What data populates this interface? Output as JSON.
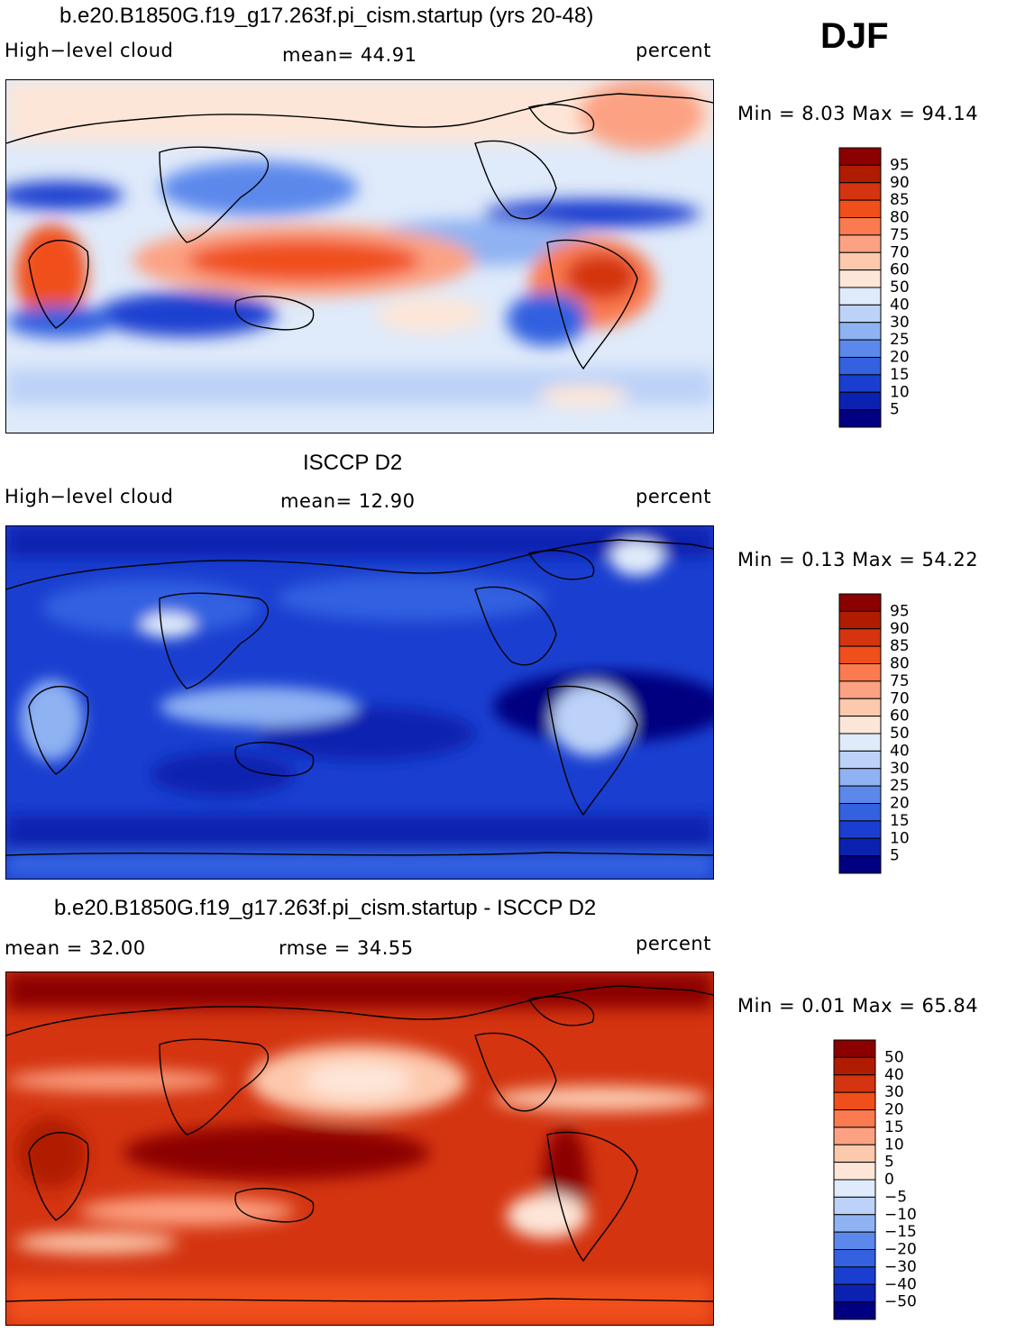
{
  "season": "DJF",
  "panels": [
    {
      "id": "model",
      "title": "b.e20.B1850G.f19_g17.263f.pi_cism.startup (yrs 20-48)",
      "left_label": "High−level cloud",
      "mid_label": "mean=   44.91",
      "right_label": "percent",
      "minmax": "Min =    8.03 Max =   94.14",
      "colorbar_ticks": [
        "95",
        "90",
        "85",
        "80",
        "75",
        "70",
        "60",
        "50",
        "40",
        "30",
        "25",
        "20",
        "15",
        "10",
        "5"
      ],
      "colorbar_colors": [
        "#8b0000",
        "#b01c00",
        "#d43410",
        "#f04f1c",
        "#fb7a4f",
        "#fca283",
        "#fdc9ad",
        "#fde6d8",
        "#dfeafa",
        "#bcd2f8",
        "#8fb2f3",
        "#5c88ec",
        "#3361e0",
        "#1a3fd0",
        "#0b22b0",
        "#000080"
      ],
      "min": 8.03,
      "max": 94.14,
      "mean": 44.91
    },
    {
      "id": "obs",
      "title": "ISCCP D2",
      "left_label": "High−level cloud",
      "mid_label": "mean=   12.90",
      "right_label": "percent",
      "minmax": "Min =    0.13 Max =   54.22",
      "colorbar_ticks": [
        "95",
        "90",
        "85",
        "80",
        "75",
        "70",
        "60",
        "50",
        "40",
        "30",
        "25",
        "20",
        "15",
        "10",
        "5"
      ],
      "colorbar_colors": [
        "#8b0000",
        "#b01c00",
        "#d43410",
        "#f04f1c",
        "#fb7a4f",
        "#fca283",
        "#fdc9ad",
        "#fde6d8",
        "#dfeafa",
        "#bcd2f8",
        "#8fb2f3",
        "#5c88ec",
        "#3361e0",
        "#1a3fd0",
        "#0b22b0",
        "#000080"
      ],
      "min": 0.13,
      "max": 54.22,
      "mean": 12.9
    },
    {
      "id": "diff",
      "title": "b.e20.B1850G.f19_g17.263f.pi_cism.startup - ISCCP D2",
      "left_label": "mean =    32.00",
      "mid_label": "rmse =    34.55",
      "right_label": "percent",
      "minmax": "Min =    0.01 Max =   65.84",
      "colorbar_ticks": [
        "50",
        "40",
        "30",
        "20",
        "15",
        "10",
        "5",
        "0",
        "−5",
        "−10",
        "−15",
        "−20",
        "−30",
        "−40",
        "−50"
      ],
      "colorbar_colors": [
        "#8b0000",
        "#b01c00",
        "#d43410",
        "#f04f1c",
        "#fb7a4f",
        "#fca283",
        "#fdc9ad",
        "#fde6d8",
        "#dfeafa",
        "#bcd2f8",
        "#8fb2f3",
        "#5c88ec",
        "#3361e0",
        "#1a3fd0",
        "#0b22b0",
        "#000080"
      ],
      "min": 0.01,
      "max": 65.84,
      "mean": 32.0,
      "rmse": 34.55
    }
  ],
  "chart_data": [
    {
      "type": "heatmap",
      "title": "b.e20.B1850G.f19_g17.263f.pi_cism.startup (yrs 20-48)",
      "variable": "High-level cloud",
      "units": "percent",
      "season": "DJF",
      "mean": 44.91,
      "min": 8.03,
      "max": 94.14,
      "levels": [
        5,
        10,
        15,
        20,
        25,
        30,
        40,
        50,
        60,
        70,
        75,
        80,
        85,
        90,
        95
      ]
    },
    {
      "type": "heatmap",
      "title": "ISCCP D2",
      "variable": "High-level cloud",
      "units": "percent",
      "season": "DJF",
      "mean": 12.9,
      "min": 0.13,
      "max": 54.22,
      "levels": [
        5,
        10,
        15,
        20,
        25,
        30,
        40,
        50,
        60,
        70,
        75,
        80,
        85,
        90,
        95
      ]
    },
    {
      "type": "heatmap",
      "title": "b.e20.B1850G.f19_g17.263f.pi_cism.startup - ISCCP D2",
      "units": "percent",
      "season": "DJF",
      "mean": 32.0,
      "rmse": 34.55,
      "min": 0.01,
      "max": 65.84,
      "levels": [
        -50,
        -40,
        -30,
        -20,
        -15,
        -10,
        -5,
        0,
        5,
        10,
        15,
        20,
        30,
        40,
        50
      ]
    }
  ]
}
